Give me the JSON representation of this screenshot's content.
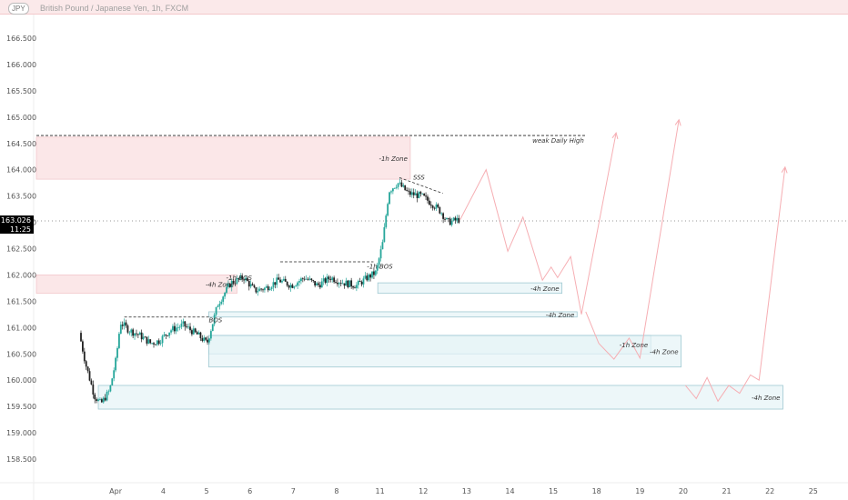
{
  "header": {
    "symbol_badge": "JPY",
    "title": "British Pound / Japanese Yen, 1h, FXCM"
  },
  "price_label": {
    "price": "163.026",
    "countdown": "11:25"
  },
  "chart_data": {
    "type": "candlestick",
    "title": "British Pound / Japanese Yen, 1h, FXCM",
    "y_ticks": [
      158.5,
      159.0,
      159.5,
      160.0,
      160.5,
      161.0,
      161.5,
      162.0,
      162.5,
      163.0,
      163.5,
      164.0,
      164.5,
      165.0,
      165.5,
      166.0,
      166.5
    ],
    "ylim": [
      158.3,
      167.2
    ],
    "x_ticks": [
      {
        "label": "Apr",
        "x": 2.9
      },
      {
        "label": "4",
        "x": 4
      },
      {
        "label": "5",
        "x": 5
      },
      {
        "label": "6",
        "x": 6
      },
      {
        "label": "7",
        "x": 7
      },
      {
        "label": "8",
        "x": 8
      },
      {
        "label": "11",
        "x": 9
      },
      {
        "label": "12",
        "x": 10
      },
      {
        "label": "13",
        "x": 11
      },
      {
        "label": "14",
        "x": 12
      },
      {
        "label": "15",
        "x": 13
      },
      {
        "label": "18",
        "x": 14
      },
      {
        "label": "19",
        "x": 15
      },
      {
        "label": "20",
        "x": 16
      },
      {
        "label": "21",
        "x": 17
      },
      {
        "label": "22",
        "x": 18
      },
      {
        "label": "25",
        "x": 19
      }
    ],
    "xlim": [
      2.1,
      19.55
    ],
    "current_price": 163.026,
    "price_path": [
      [
        2.1,
        160.9
      ],
      [
        2.25,
        160.3
      ],
      [
        2.45,
        159.7
      ],
      [
        2.6,
        159.55
      ],
      [
        2.8,
        159.8
      ],
      [
        2.95,
        160.4
      ],
      [
        3.05,
        161.1
      ],
      [
        3.25,
        160.95
      ],
      [
        3.5,
        160.85
      ],
      [
        3.75,
        160.7
      ],
      [
        3.95,
        160.75
      ],
      [
        4.2,
        160.95
      ],
      [
        4.5,
        161.05
      ],
      [
        4.85,
        160.85
      ],
      [
        5.05,
        160.7
      ],
      [
        5.3,
        161.45
      ],
      [
        5.6,
        161.85
      ],
      [
        5.9,
        161.95
      ],
      [
        6.15,
        161.7
      ],
      [
        6.4,
        161.75
      ],
      [
        6.7,
        161.9
      ],
      [
        7.0,
        161.8
      ],
      [
        7.3,
        161.95
      ],
      [
        7.6,
        161.8
      ],
      [
        7.9,
        161.95
      ],
      [
        8.2,
        161.85
      ],
      [
        8.5,
        161.8
      ],
      [
        8.75,
        161.95
      ],
      [
        8.95,
        162.05
      ],
      [
        9.1,
        162.6
      ],
      [
        9.25,
        163.6
      ],
      [
        9.45,
        163.75
      ],
      [
        9.7,
        163.55
      ],
      [
        10.0,
        163.5
      ],
      [
        10.25,
        163.35
      ],
      [
        10.45,
        163.2
      ],
      [
        10.6,
        163.0
      ],
      [
        10.85,
        163.05
      ]
    ],
    "projections": [
      [
        [
          10.85,
          163.05
        ],
        [
          11.45,
          164.0
        ],
        [
          11.95,
          162.45
        ],
        [
          12.3,
          163.1
        ],
        [
          12.75,
          161.9
        ],
        [
          12.95,
          162.15
        ],
        [
          13.1,
          161.95
        ],
        [
          13.4,
          162.35
        ],
        [
          13.65,
          161.25
        ],
        [
          14.45,
          164.7
        ]
      ],
      [
        [
          13.75,
          161.3
        ],
        [
          14.05,
          160.7
        ],
        [
          14.4,
          160.4
        ],
        [
          14.75,
          160.8
        ],
        [
          15.0,
          160.42
        ],
        [
          15.9,
          164.95
        ]
      ],
      [
        [
          16.05,
          159.9
        ],
        [
          16.3,
          159.65
        ],
        [
          16.55,
          160.05
        ],
        [
          16.8,
          159.6
        ],
        [
          17.05,
          159.9
        ],
        [
          17.3,
          159.75
        ],
        [
          17.55,
          160.1
        ],
        [
          17.75,
          160.0
        ],
        [
          18.35,
          164.05
        ]
      ]
    ],
    "lines": [
      {
        "label": "weak Daily High",
        "price": 164.65,
        "x_start": 2.1,
        "x_end": 13.75
      },
      {
        "label": "SSS",
        "from": [
          9.45,
          163.85
        ],
        "to": [
          10.45,
          163.55
        ]
      },
      {
        "label": "",
        "price": 162.25,
        "x_start": 6.7,
        "x_end": 8.85
      },
      {
        "label": "",
        "price": 161.2,
        "x_start": 3.1,
        "x_end": 5.05
      }
    ],
    "zones": [
      {
        "label": "-1h Zone",
        "type": "supply",
        "top": 164.62,
        "bottom": 163.82,
        "x_start": 2.1,
        "x_end": 9.7
      },
      {
        "label": "-4h Zone",
        "type": "supply",
        "top": 162.0,
        "bottom": 161.65,
        "x_start": 2.1,
        "x_end": 5.7
      },
      {
        "label": "-4h Zone",
        "type": "demand",
        "top": 161.85,
        "bottom": 161.65,
        "x_start": 8.95,
        "x_end": 13.2
      },
      {
        "label": "-4h Zone",
        "type": "demand",
        "top": 161.3,
        "bottom": 161.2,
        "x_start": 5.05,
        "x_end": 13.55
      },
      {
        "label": "-1h Zone",
        "type": "demand",
        "top": 160.85,
        "bottom": 160.5,
        "x_start": 5.05,
        "x_end": 15.25
      },
      {
        "label": "-4h Zone",
        "type": "demand",
        "top": 160.85,
        "bottom": 160.25,
        "x_start": 5.05,
        "x_end": 15.95
      },
      {
        "label": "-4h Zone",
        "type": "demand",
        "top": 159.9,
        "bottom": 159.45,
        "x_start": 2.5,
        "x_end": 18.3
      }
    ],
    "annotations": [
      {
        "text": "-1h BOS",
        "x": 5.45,
        "price": 161.9
      },
      {
        "text": "-1h BOS",
        "x": 8.7,
        "price": 162.12
      },
      {
        "text": "BOS",
        "x": 5.05,
        "price": 161.1
      }
    ],
    "colors": {
      "bull": "#26a69a",
      "bear": "#222222",
      "supply_fill": "#fbe7e8",
      "demand_fill": "#e6f4f7",
      "demand_border": "#9fc9d2",
      "projection": "#f6aeb3",
      "price_badge": "#000000"
    }
  }
}
